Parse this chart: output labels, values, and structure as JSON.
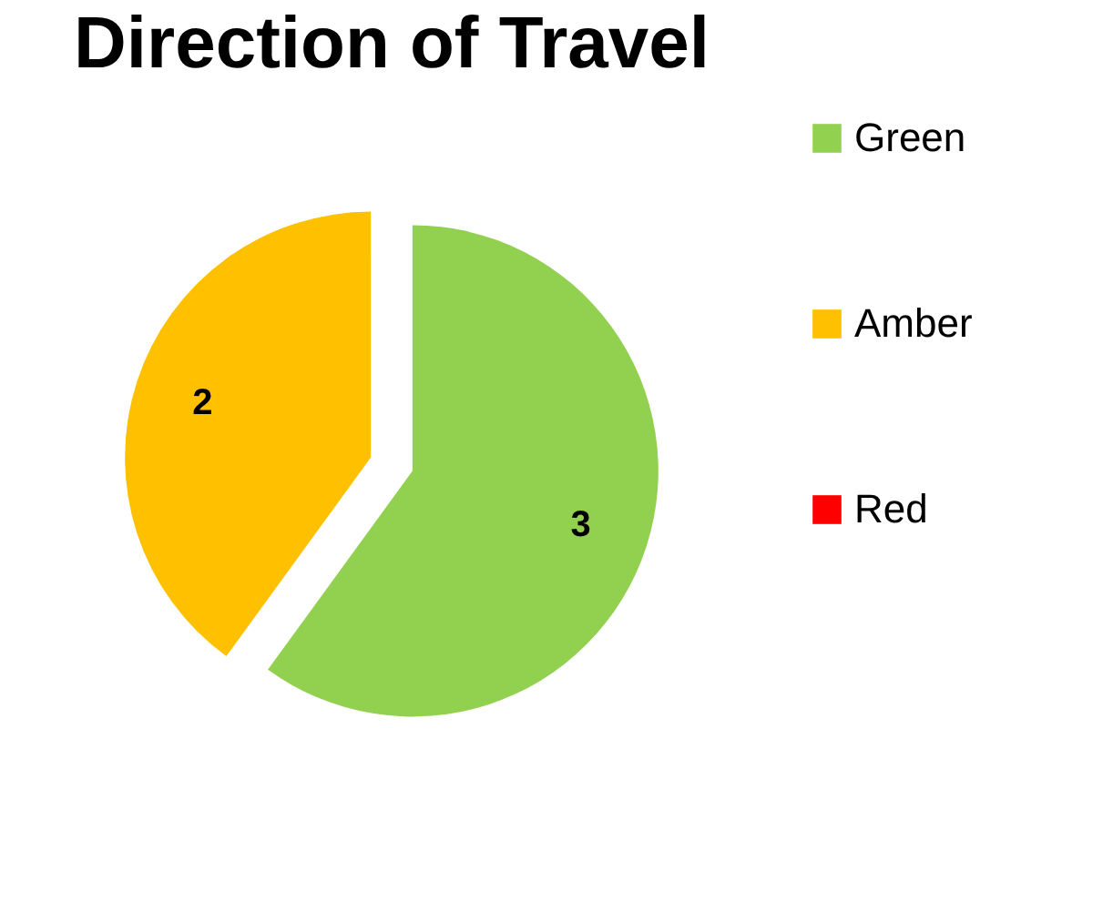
{
  "chart_data": {
    "type": "pie",
    "title": "Direction of Travel",
    "categories": [
      "Green",
      "Amber",
      "Red"
    ],
    "values": [
      3,
      2,
      0
    ],
    "colors": [
      "#92d050",
      "#ffc000",
      "#ff0000"
    ],
    "data_labels": true,
    "legend": "right"
  }
}
